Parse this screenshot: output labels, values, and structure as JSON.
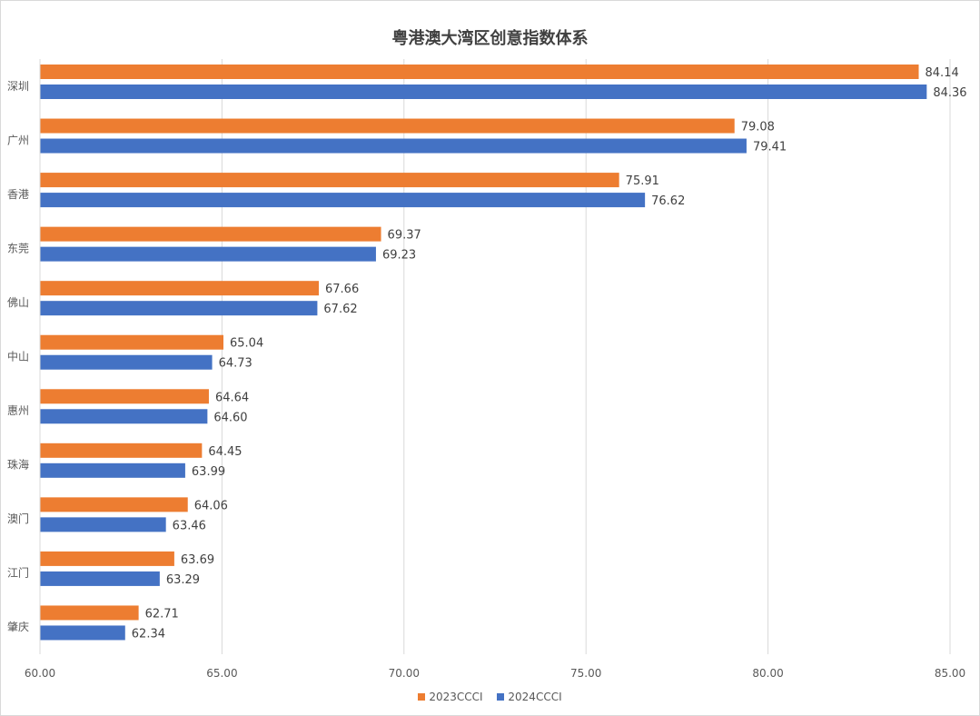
{
  "chart_data": {
    "type": "bar",
    "orientation": "horizontal",
    "title": "粤港澳大湾区创意指数体系",
    "categories": [
      "深圳",
      "广州",
      "香港",
      "东莞",
      "佛山",
      "中山",
      "惠州",
      "珠海",
      "澳门",
      "江门",
      "肇庆"
    ],
    "series": [
      {
        "name": "2023CCCI",
        "color": "#ED7D31",
        "values": [
          84.14,
          79.08,
          75.91,
          69.37,
          67.66,
          65.04,
          64.64,
          64.45,
          64.06,
          63.69,
          62.71
        ],
        "labels": [
          "84.14",
          "79.08",
          "75.91",
          "69.37",
          "67.66",
          "65.04",
          "64.64",
          "64.45",
          "64.06",
          "63.69",
          "62.71"
        ]
      },
      {
        "name": "2024CCCI",
        "color": "#4472C4",
        "values": [
          84.36,
          79.41,
          76.62,
          69.23,
          67.62,
          64.73,
          64.6,
          63.99,
          63.46,
          63.29,
          62.34
        ],
        "labels": [
          "84.36",
          "79.41",
          "76.62",
          "69.23",
          "67.62",
          "64.73",
          "64.60",
          "63.99",
          "63.46",
          "63.29",
          "62.34"
        ]
      }
    ],
    "xlim": [
      60,
      85
    ],
    "xticks": [
      60,
      65,
      70,
      75,
      80,
      85
    ],
    "xtick_labels": [
      "60.00",
      "65.00",
      "70.00",
      "75.00",
      "80.00",
      "85.00"
    ],
    "grid": "vertical",
    "legend": "bottom"
  }
}
